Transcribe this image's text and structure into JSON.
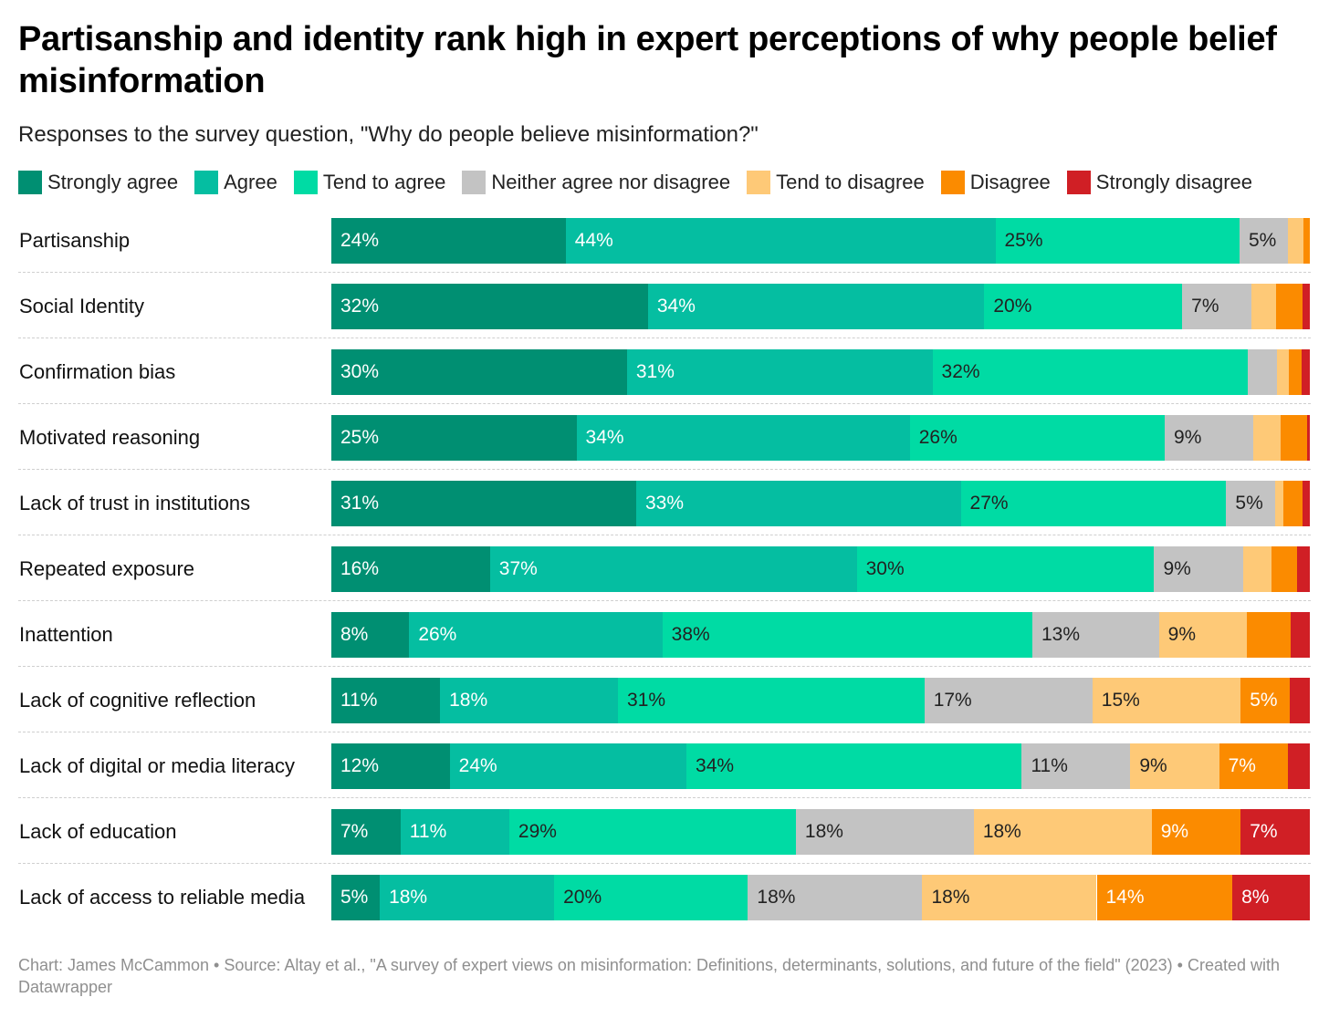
{
  "title": "Partisanship and identity rank high in expert perceptions of why people belief misinformation",
  "subtitle": "Responses to the survey question, \"Why do people believe misinformation?\"",
  "footer": {
    "credit": "Chart: James McCammon • Source: Altay et al., \"A survey of expert views on misinformation: Definitions, determinants, solutions, and future of the field\" (2023) • Created with Datawrapper"
  },
  "chart_data": {
    "type": "bar",
    "orientation": "horizontal",
    "stacked": true,
    "unit": "%",
    "xlim": [
      0,
      100
    ],
    "legend_position": "top",
    "categories": [
      "Partisanship",
      "Social Identity",
      "Confirmation bias",
      "Motivated reasoning",
      "Lack of trust in institutions",
      "Repeated exposure",
      "Inattention",
      "Lack of cognitive reflection",
      "Lack of digital or media literacy",
      "Lack of education",
      "Lack of access to reliable media"
    ],
    "series": [
      {
        "name": "Strongly agree",
        "color": "#008f72",
        "label_color": "#ffffff",
        "values": [
          24,
          32,
          30,
          25,
          31,
          16,
          8,
          11,
          12,
          7,
          5
        ]
      },
      {
        "name": "Agree",
        "color": "#05bea1",
        "label_color": "#ffffff",
        "values": [
          44,
          34,
          31,
          34,
          33,
          37,
          26,
          18,
          24,
          11,
          18
        ]
      },
      {
        "name": "Tend to agree",
        "color": "#00dba4",
        "label_color": "#222222",
        "values": [
          25,
          20,
          32,
          26,
          27,
          30,
          38,
          31,
          34,
          29,
          20
        ]
      },
      {
        "name": "Neither agree nor disagree",
        "color": "#c3c3c3",
        "label_color": "#222222",
        "values": [
          5,
          7,
          3,
          9,
          5,
          9,
          13,
          17,
          11,
          18,
          18
        ]
      },
      {
        "name": "Tend to disagree",
        "color": "#fec977",
        "label_color": "#222222",
        "values": [
          1.5,
          2.5,
          1.2,
          2.8,
          0.8,
          2.8,
          9,
          15,
          9,
          18,
          18
        ]
      },
      {
        "name": "Disagree",
        "color": "#fb8b00",
        "label_color": "#ffffff",
        "values": [
          0.7,
          2.7,
          1.3,
          2.7,
          2,
          2.6,
          4.5,
          5,
          7,
          9,
          14
        ]
      },
      {
        "name": "Strongly disagree",
        "color": "#d01f25",
        "label_color": "#ffffff",
        "values": [
          0,
          0.7,
          0.8,
          0.3,
          0.7,
          1.3,
          2,
          2,
          2.2,
          7,
          8
        ]
      }
    ],
    "data_labels": [
      [
        "24%",
        "44%",
        "25%",
        "5%",
        "",
        "",
        ""
      ],
      [
        "32%",
        "34%",
        "20%",
        "7%",
        "",
        "",
        ""
      ],
      [
        "30%",
        "31%",
        "32%",
        "",
        "",
        "",
        ""
      ],
      [
        "25%",
        "34%",
        "26%",
        "9%",
        "",
        "",
        ""
      ],
      [
        "31%",
        "33%",
        "27%",
        "5%",
        "",
        "",
        ""
      ],
      [
        "16%",
        "37%",
        "30%",
        "9%",
        "",
        "",
        ""
      ],
      [
        "8%",
        "26%",
        "38%",
        "13%",
        "9%",
        "",
        ""
      ],
      [
        "11%",
        "18%",
        "31%",
        "17%",
        "15%",
        "5%",
        ""
      ],
      [
        "12%",
        "24%",
        "34%",
        "11%",
        "9%",
        "7%",
        ""
      ],
      [
        "7%",
        "11%",
        "29%",
        "18%",
        "18%",
        "9%",
        "7%"
      ],
      [
        "5%",
        "18%",
        "20%",
        "18%",
        "18%",
        "14%",
        "8%"
      ]
    ]
  }
}
